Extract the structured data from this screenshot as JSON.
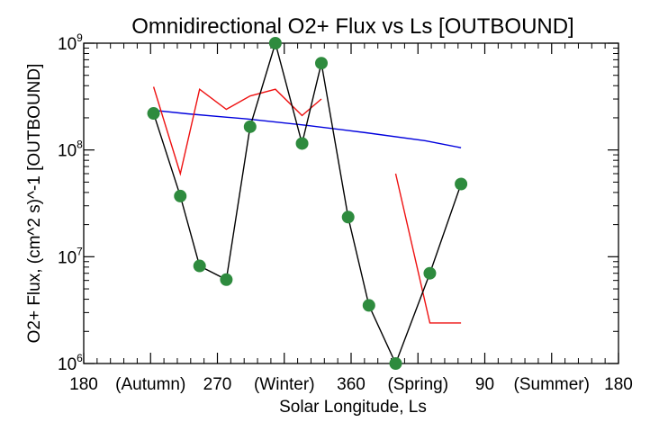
{
  "chart_data": {
    "type": "line",
    "title": "Omnidirectional O2+ Flux vs Ls [OUTBOUND]",
    "xlabel": "Solar Longitude, Ls",
    "ylabel": "O2+ Flux, (cm^2 s)^-1 [OUTBOUND]",
    "x_tick_labels": [
      "180",
      "(Autumn)",
      "270",
      "(Winter)",
      "360",
      "(Spring)",
      "90",
      "(Summer)",
      "180"
    ],
    "y_scale": "log",
    "y_tick_labels": [
      {
        "base": "10",
        "exp": "6"
      },
      {
        "base": "10",
        "exp": "7"
      },
      {
        "base": "10",
        "exp": "8"
      },
      {
        "base": "10",
        "exp": "9"
      }
    ],
    "xlim": [
      180,
      540
    ],
    "ylim": [
      1000000,
      1000000000
    ],
    "grid": false,
    "series": [
      {
        "color": "#000000",
        "marker_color": "#2e8b3e",
        "x": [
          227,
          245,
          258,
          276,
          292,
          309,
          327,
          340,
          358,
          372,
          390,
          413,
          434
        ],
        "y": [
          220000000,
          37000000,
          8200000,
          6100000,
          165000000,
          1000000000,
          115000000,
          650000000,
          23500000,
          3500000,
          1000000,
          7000000,
          48000000
        ]
      },
      {
        "color": "#0000dd",
        "x": [
          227,
          250,
          290,
          330,
          370,
          410,
          434
        ],
        "y": [
          235000000,
          218000000,
          195000000,
          170000000,
          145000000,
          122000000,
          105000000
        ]
      },
      {
        "color": "#ee1111",
        "x": [
          227,
          245,
          258,
          276,
          292,
          309,
          327,
          340
        ],
        "y": [
          390000000,
          60000000,
          370000000,
          240000000,
          320000000,
          370000000,
          210000000,
          300000000
        ]
      },
      {
        "color": "#ee1111",
        "x": [
          390,
          413,
          434
        ],
        "y": [
          60000000,
          2400000,
          2400000
        ]
      }
    ]
  }
}
